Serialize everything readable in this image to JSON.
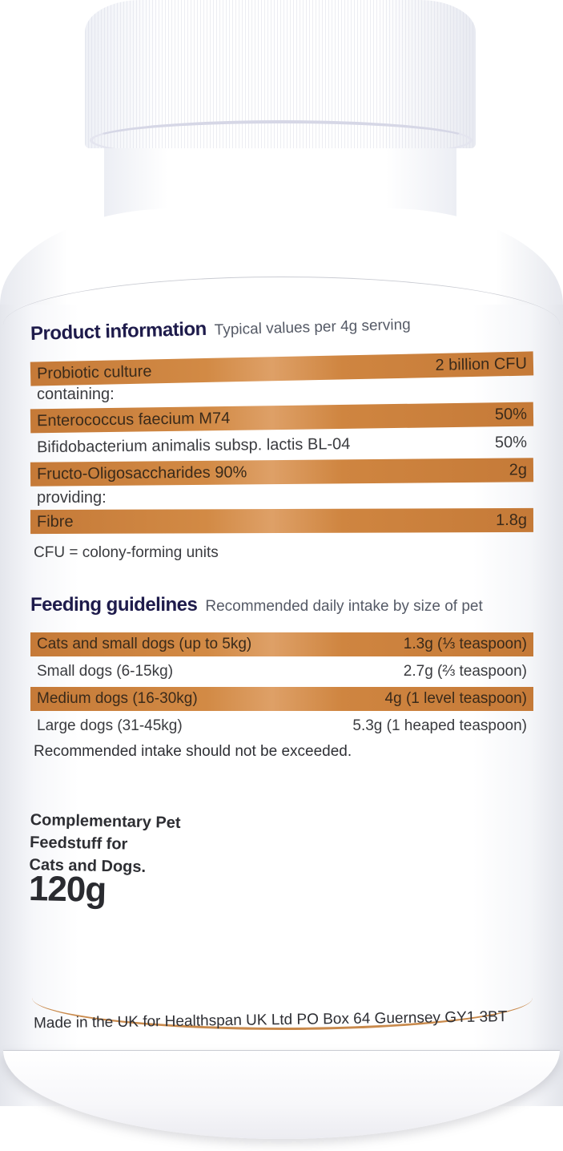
{
  "product_information": {
    "title": "Product information",
    "subtitle": "Typical values per 4g serving",
    "rows": [
      {
        "label": "Probiotic culture",
        "value": "2 billion CFU",
        "highlight": true
      },
      {
        "label": "containing:",
        "value": "",
        "highlight": false
      },
      {
        "label": "Enterococcus faecium M74",
        "value": "50%",
        "highlight": true
      },
      {
        "label": "Bifidobacterium animalis subsp. lactis BL-04",
        "value": "50%",
        "highlight": false
      },
      {
        "label": "Fructo-Oligosaccharides 90%",
        "value": "2g",
        "highlight": true
      },
      {
        "label": "providing:",
        "value": "",
        "highlight": false
      },
      {
        "label": "Fibre",
        "value": "1.8g",
        "highlight": true
      }
    ],
    "footnote": "CFU = colony-forming units"
  },
  "feeding_guidelines": {
    "title": "Feeding guidelines",
    "subtitle": "Recommended daily intake by size of pet",
    "rows": [
      {
        "label": "Cats and small dogs (up to 5kg)",
        "value": "1.3g (⅓ teaspoon)",
        "highlight": true
      },
      {
        "label": "Small dogs (6-15kg)",
        "value": "2.7g (⅔ teaspoon)",
        "highlight": false
      },
      {
        "label": "Medium dogs (16-30kg)",
        "value": "4g (1 level teaspoon)",
        "highlight": true
      },
      {
        "label": "Large dogs (31-45kg)",
        "value": "5.3g (1 heaped teaspoon)",
        "highlight": false
      }
    ],
    "note": "Recommended intake should not be exceeded."
  },
  "product_type": {
    "line1": "Complementary Pet",
    "line2": "Feedstuff for",
    "line3": "Cats and Dogs."
  },
  "net_weight": "120g",
  "footer": "Made in the UK for Healthspan UK Ltd  PO Box 64  Guernsey  GY1 3BT",
  "colors": {
    "band": "#CD8642",
    "heading": "#1E1B4B",
    "divider": "#C98A4C",
    "bottle": "#FFFFFF"
  }
}
